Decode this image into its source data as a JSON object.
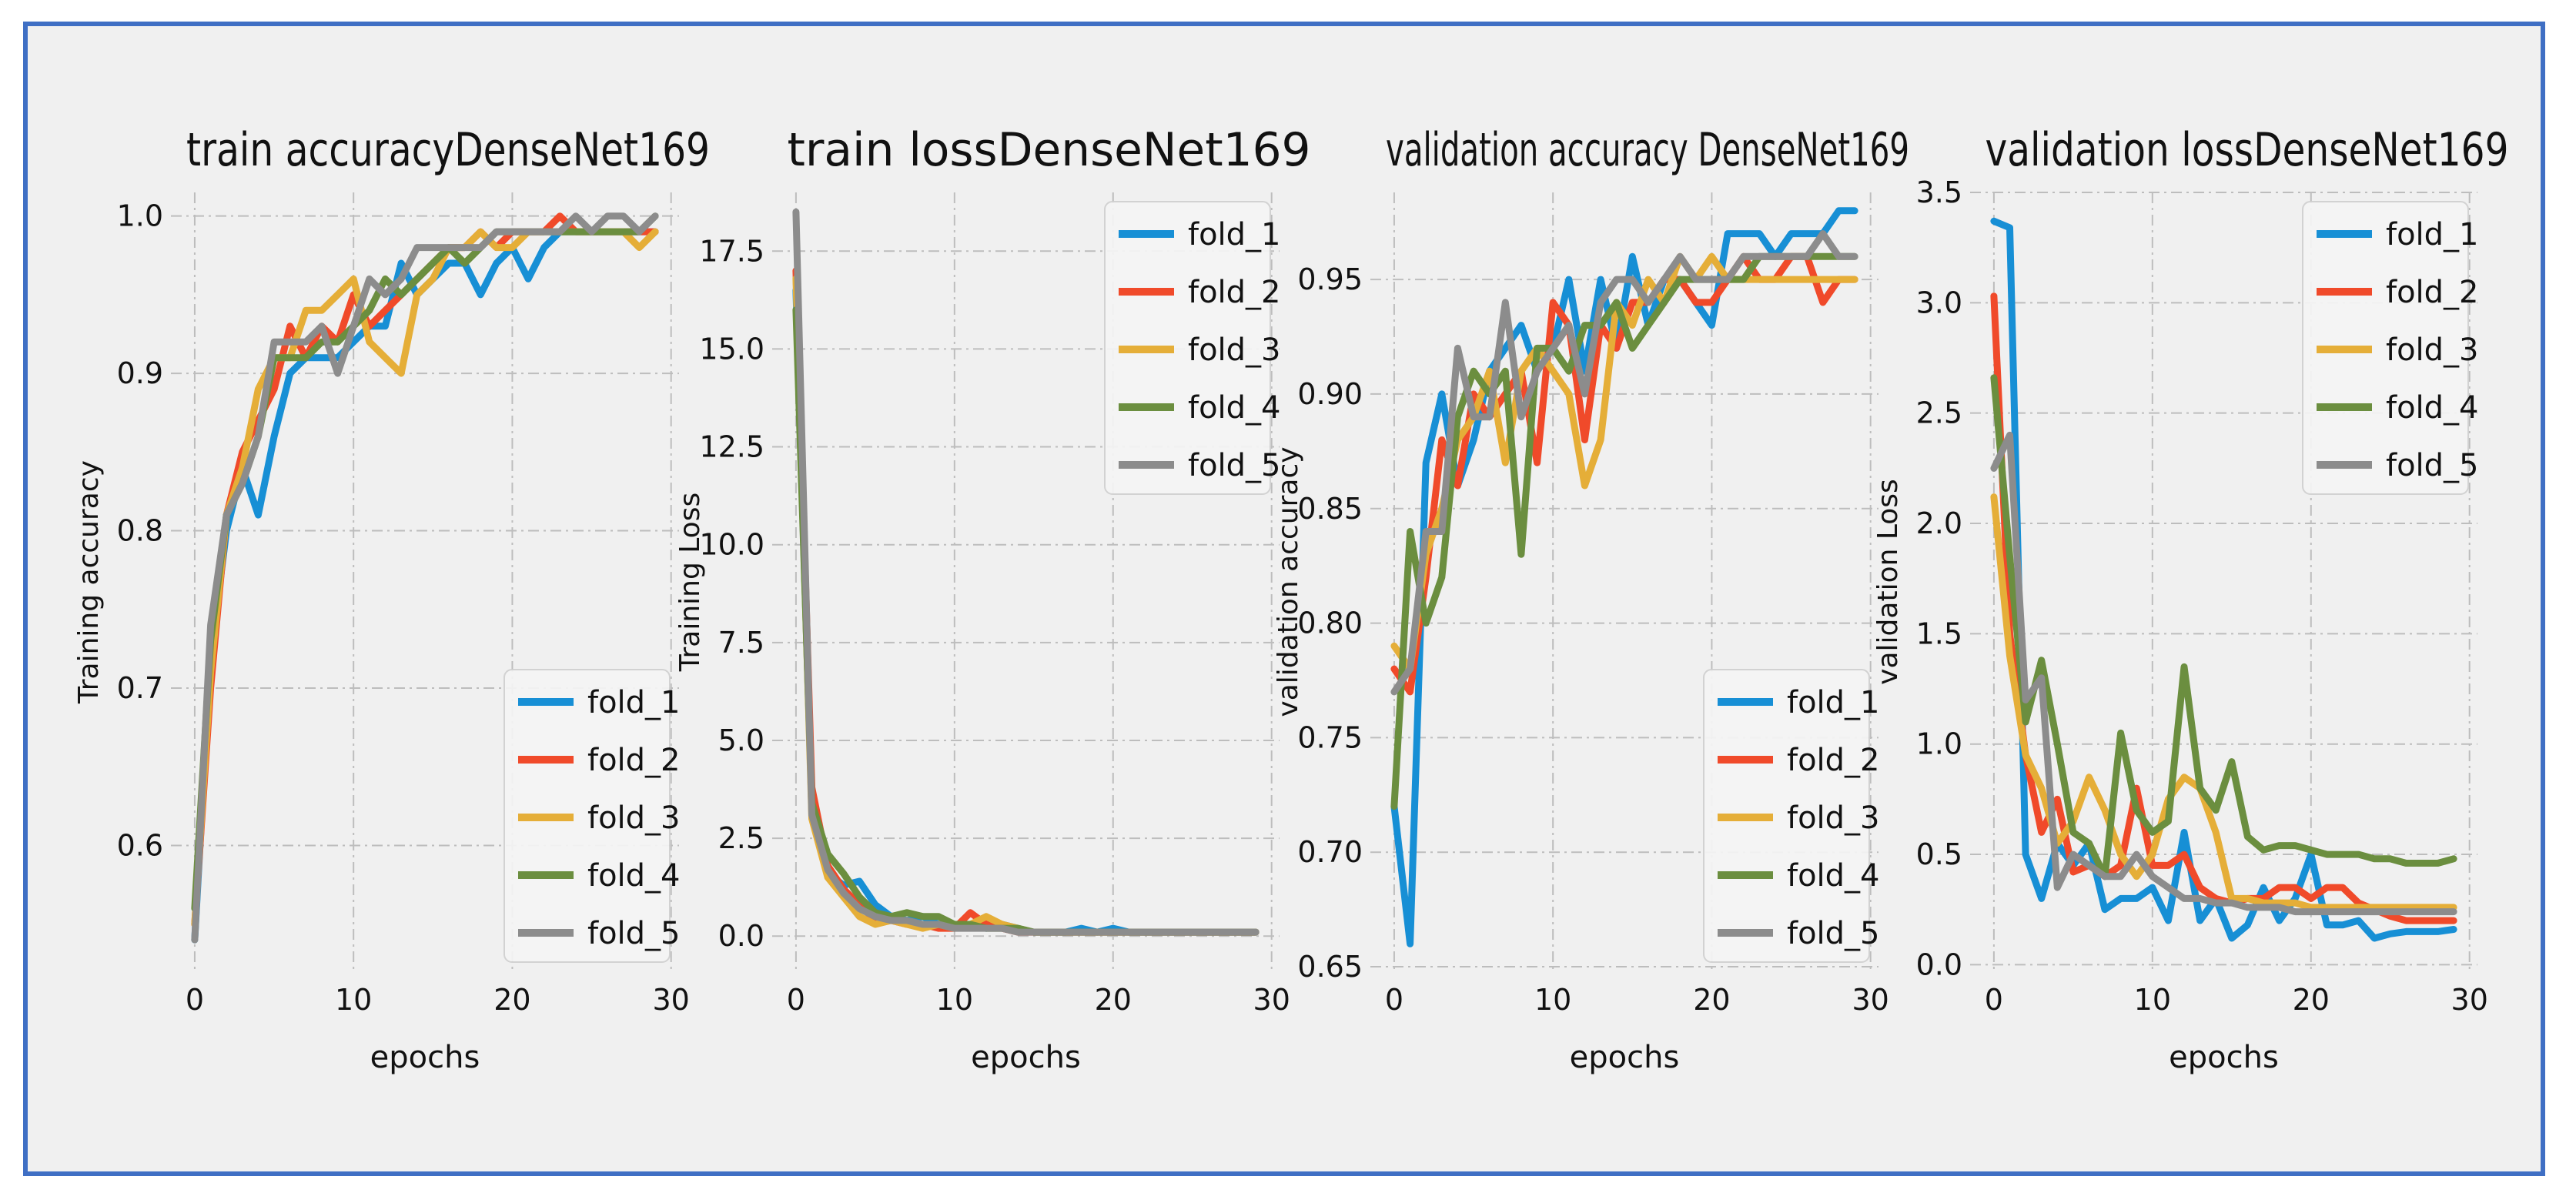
{
  "colors": {
    "figure_bg": "#f0f0f0",
    "frame": "#3f6fc4",
    "grid": "#bdbdbd",
    "text": "#111111",
    "fold_1": "#178fd5",
    "fold_2": "#f04a2a",
    "fold_3": "#e5ae38",
    "fold_4": "#6b8e3f",
    "fold_5": "#8c8c8c"
  },
  "chart_data": [
    {
      "type": "line",
      "title": "train accuracyDenseNet169",
      "xlabel": "epochs",
      "ylabel": "Training accuracy",
      "xlim": [
        -1.5,
        30.5
      ],
      "ylim": [
        0.52,
        1.015
      ],
      "xticks": [
        0,
        10,
        20,
        30
      ],
      "xtick_labels": [
        "0",
        "10",
        "20",
        "30"
      ],
      "yticks": [
        0.6,
        0.7,
        0.8,
        0.9,
        1.0
      ],
      "ytick_labels": [
        "0.6",
        "0.7",
        "0.8",
        "0.9",
        "1.0"
      ],
      "grid": true,
      "legend": "lower-right",
      "series": [
        {
          "name": "fold_1",
          "values": [
            0.54,
            0.72,
            0.8,
            0.84,
            0.81,
            0.86,
            0.9,
            0.91,
            0.91,
            0.91,
            0.92,
            0.93,
            0.93,
            0.97,
            0.95,
            0.96,
            0.97,
            0.97,
            0.95,
            0.97,
            0.98,
            0.96,
            0.98,
            0.99,
            0.99,
            0.99,
            0.99,
            0.99,
            0.99,
            0.99
          ]
        },
        {
          "name": "fold_2",
          "values": [
            0.55,
            0.7,
            0.81,
            0.85,
            0.87,
            0.89,
            0.93,
            0.91,
            0.93,
            0.92,
            0.95,
            0.93,
            0.94,
            0.95,
            0.96,
            0.97,
            0.98,
            0.98,
            0.99,
            0.98,
            0.99,
            0.99,
            0.99,
            1.0,
            0.99,
            0.99,
            0.99,
            0.99,
            0.99,
            0.99
          ]
        },
        {
          "name": "fold_3",
          "values": [
            0.55,
            0.71,
            0.81,
            0.84,
            0.89,
            0.91,
            0.91,
            0.94,
            0.94,
            0.95,
            0.96,
            0.92,
            0.91,
            0.9,
            0.95,
            0.96,
            0.98,
            0.98,
            0.99,
            0.98,
            0.98,
            0.99,
            0.99,
            0.99,
            0.99,
            0.99,
            0.99,
            0.99,
            0.98,
            0.99
          ]
        },
        {
          "name": "fold_4",
          "values": [
            0.56,
            0.73,
            0.81,
            0.83,
            0.86,
            0.91,
            0.91,
            0.91,
            0.92,
            0.92,
            0.93,
            0.94,
            0.96,
            0.95,
            0.96,
            0.97,
            0.98,
            0.97,
            0.98,
            0.99,
            0.99,
            0.99,
            0.99,
            0.99,
            0.99,
            0.99,
            0.99,
            0.99,
            0.99,
            1.0
          ]
        },
        {
          "name": "fold_5",
          "values": [
            0.54,
            0.74,
            0.81,
            0.83,
            0.86,
            0.92,
            0.92,
            0.92,
            0.93,
            0.9,
            0.93,
            0.96,
            0.95,
            0.96,
            0.98,
            0.98,
            0.98,
            0.98,
            0.98,
            0.99,
            0.99,
            0.99,
            0.99,
            0.99,
            1.0,
            0.99,
            1.0,
            1.0,
            0.99,
            1.0
          ]
        }
      ]
    },
    {
      "type": "line",
      "title": "train lossDenseNet169",
      "xlabel": "epochs",
      "ylabel": "Training Loss",
      "xlim": [
        -1.5,
        30.5
      ],
      "ylim": [
        -0.9,
        19.0
      ],
      "xticks": [
        0,
        10,
        20,
        30
      ],
      "xtick_labels": [
        "0",
        "10",
        "20",
        "30"
      ],
      "yticks": [
        0.0,
        2.5,
        5.0,
        7.5,
        10.0,
        12.5,
        15.0,
        17.5
      ],
      "ytick_labels": [
        "0.0",
        "2.5",
        "5.0",
        "7.5",
        "10.0",
        "12.5",
        "15.0",
        "17.5"
      ],
      "grid": true,
      "legend": "top-right",
      "series": [
        {
          "name": "fold_1",
          "values": [
            16.5,
            3.2,
            1.6,
            1.3,
            1.4,
            0.8,
            0.5,
            0.4,
            0.5,
            0.3,
            0.3,
            0.3,
            0.2,
            0.3,
            0.2,
            0.1,
            0.1,
            0.1,
            0.2,
            0.1,
            0.2,
            0.1,
            0.1,
            0.1,
            0.1,
            0.1,
            0.1,
            0.1,
            0.1,
            0.1
          ]
        },
        {
          "name": "fold_2",
          "values": [
            17.0,
            3.8,
            1.8,
            1.2,
            0.8,
            0.4,
            0.4,
            0.3,
            0.3,
            0.2,
            0.2,
            0.6,
            0.3,
            0.2,
            0.1,
            0.1,
            0.1,
            0.1,
            0.1,
            0.1,
            0.1,
            0.1,
            0.1,
            0.1,
            0.1,
            0.1,
            0.1,
            0.1,
            0.1,
            0.1
          ]
        },
        {
          "name": "fold_3",
          "values": [
            16.8,
            3.0,
            1.5,
            1.0,
            0.5,
            0.3,
            0.4,
            0.3,
            0.2,
            0.3,
            0.2,
            0.3,
            0.5,
            0.3,
            0.2,
            0.1,
            0.1,
            0.1,
            0.1,
            0.1,
            0.1,
            0.1,
            0.1,
            0.1,
            0.1,
            0.1,
            0.1,
            0.1,
            0.1,
            0.1
          ]
        },
        {
          "name": "fold_4",
          "values": [
            16.0,
            3.4,
            2.1,
            1.6,
            1.0,
            0.6,
            0.5,
            0.6,
            0.5,
            0.5,
            0.3,
            0.3,
            0.2,
            0.2,
            0.2,
            0.1,
            0.1,
            0.1,
            0.1,
            0.1,
            0.1,
            0.1,
            0.1,
            0.1,
            0.1,
            0.1,
            0.1,
            0.1,
            0.1,
            0.1
          ]
        },
        {
          "name": "fold_5",
          "values": [
            18.5,
            3.1,
            1.7,
            1.1,
            0.7,
            0.5,
            0.4,
            0.4,
            0.3,
            0.3,
            0.2,
            0.2,
            0.2,
            0.2,
            0.1,
            0.1,
            0.1,
            0.1,
            0.1,
            0.1,
            0.1,
            0.1,
            0.1,
            0.1,
            0.1,
            0.1,
            0.1,
            0.1,
            0.1,
            0.1
          ]
        }
      ]
    },
    {
      "type": "line",
      "title": "validation accuracy DenseNet169",
      "xlabel": "epochs",
      "ylabel": "validation accuracy",
      "xlim": [
        -1.5,
        30.5
      ],
      "ylim": [
        0.648,
        0.988
      ],
      "xticks": [
        0,
        10,
        20,
        30
      ],
      "xtick_labels": [
        "0",
        "10",
        "20",
        "30"
      ],
      "yticks": [
        0.65,
        0.7,
        0.75,
        0.8,
        0.85,
        0.9,
        0.95
      ],
      "ytick_labels": [
        "0.65",
        "0.70",
        "0.75",
        "0.80",
        "0.85",
        "0.90",
        "0.95"
      ],
      "grid": true,
      "legend": "lower-right",
      "series": [
        {
          "name": "fold_1",
          "values": [
            0.72,
            0.66,
            0.87,
            0.9,
            0.86,
            0.88,
            0.91,
            0.92,
            0.93,
            0.91,
            0.92,
            0.95,
            0.91,
            0.95,
            0.92,
            0.96,
            0.93,
            0.95,
            0.95,
            0.94,
            0.93,
            0.97,
            0.97,
            0.97,
            0.96,
            0.97,
            0.97,
            0.97,
            0.98,
            0.98
          ]
        },
        {
          "name": "fold_2",
          "values": [
            0.78,
            0.77,
            0.82,
            0.88,
            0.86,
            0.9,
            0.89,
            0.9,
            0.91,
            0.87,
            0.94,
            0.93,
            0.88,
            0.93,
            0.92,
            0.94,
            0.94,
            0.95,
            0.95,
            0.94,
            0.94,
            0.95,
            0.96,
            0.95,
            0.95,
            0.96,
            0.96,
            0.94,
            0.95,
            0.95
          ]
        },
        {
          "name": "fold_3",
          "values": [
            0.79,
            0.78,
            0.83,
            0.85,
            0.88,
            0.89,
            0.91,
            0.87,
            0.91,
            0.92,
            0.91,
            0.9,
            0.86,
            0.88,
            0.94,
            0.93,
            0.95,
            0.94,
            0.96,
            0.95,
            0.96,
            0.95,
            0.95,
            0.95,
            0.95,
            0.95,
            0.95,
            0.95,
            0.95,
            0.95
          ]
        },
        {
          "name": "fold_4",
          "values": [
            0.72,
            0.84,
            0.8,
            0.82,
            0.89,
            0.91,
            0.9,
            0.91,
            0.83,
            0.92,
            0.92,
            0.91,
            0.93,
            0.93,
            0.94,
            0.92,
            0.93,
            0.94,
            0.95,
            0.95,
            0.95,
            0.95,
            0.95,
            0.96,
            0.96,
            0.96,
            0.96,
            0.96,
            0.96,
            0.96
          ]
        },
        {
          "name": "fold_5",
          "values": [
            0.77,
            0.78,
            0.84,
            0.84,
            0.92,
            0.89,
            0.89,
            0.94,
            0.89,
            0.91,
            0.92,
            0.93,
            0.9,
            0.94,
            0.95,
            0.95,
            0.94,
            0.95,
            0.96,
            0.95,
            0.95,
            0.95,
            0.96,
            0.96,
            0.96,
            0.96,
            0.96,
            0.97,
            0.96,
            0.96
          ]
        }
      ]
    },
    {
      "type": "line",
      "title": "validation lossDenseNet169",
      "xlabel": "epochs",
      "ylabel": "validation Loss",
      "xlim": [
        -1.5,
        30.5
      ],
      "ylim": [
        -0.03,
        3.5
      ],
      "xticks": [
        0,
        10,
        20,
        30
      ],
      "xtick_labels": [
        "0",
        "10",
        "20",
        "30"
      ],
      "yticks": [
        0.0,
        0.5,
        1.0,
        1.5,
        2.0,
        2.5,
        3.0,
        3.5
      ],
      "ytick_labels": [
        "0.0",
        "0.5",
        "1.0",
        "1.5",
        "2.0",
        "2.5",
        "3.0",
        "3.5"
      ],
      "grid": true,
      "legend": "top-right",
      "series": [
        {
          "name": "fold_1",
          "values": [
            3.37,
            3.34,
            0.5,
            0.3,
            0.55,
            0.45,
            0.55,
            0.25,
            0.3,
            0.3,
            0.35,
            0.2,
            0.6,
            0.2,
            0.3,
            0.12,
            0.18,
            0.35,
            0.2,
            0.3,
            0.5,
            0.18,
            0.18,
            0.2,
            0.12,
            0.14,
            0.15,
            0.15,
            0.15,
            0.16
          ]
        },
        {
          "name": "fold_2",
          "values": [
            3.03,
            1.5,
            0.95,
            0.6,
            0.75,
            0.42,
            0.45,
            0.4,
            0.45,
            0.8,
            0.45,
            0.45,
            0.5,
            0.35,
            0.3,
            0.28,
            0.3,
            0.3,
            0.35,
            0.35,
            0.3,
            0.35,
            0.35,
            0.28,
            0.25,
            0.22,
            0.2,
            0.2,
            0.2,
            0.2
          ]
        },
        {
          "name": "fold_3",
          "values": [
            2.12,
            1.4,
            0.95,
            0.8,
            0.55,
            0.65,
            0.85,
            0.7,
            0.5,
            0.4,
            0.5,
            0.75,
            0.85,
            0.8,
            0.6,
            0.3,
            0.3,
            0.28,
            0.28,
            0.28,
            0.26,
            0.26,
            0.26,
            0.26,
            0.26,
            0.26,
            0.26,
            0.26,
            0.26,
            0.26
          ]
        },
        {
          "name": "fold_4",
          "values": [
            2.66,
            1.85,
            1.1,
            1.38,
            1.0,
            0.6,
            0.55,
            0.4,
            1.05,
            0.7,
            0.6,
            0.65,
            1.35,
            0.8,
            0.7,
            0.92,
            0.58,
            0.52,
            0.54,
            0.54,
            0.52,
            0.5,
            0.5,
            0.5,
            0.48,
            0.48,
            0.46,
            0.46,
            0.46,
            0.48
          ]
        },
        {
          "name": "fold_5",
          "values": [
            2.25,
            2.4,
            1.2,
            1.3,
            0.35,
            0.5,
            0.45,
            0.4,
            0.4,
            0.5,
            0.4,
            0.35,
            0.3,
            0.3,
            0.28,
            0.28,
            0.26,
            0.26,
            0.26,
            0.24,
            0.24,
            0.24,
            0.24,
            0.24,
            0.24,
            0.24,
            0.24,
            0.24,
            0.24,
            0.24
          ]
        }
      ]
    }
  ]
}
